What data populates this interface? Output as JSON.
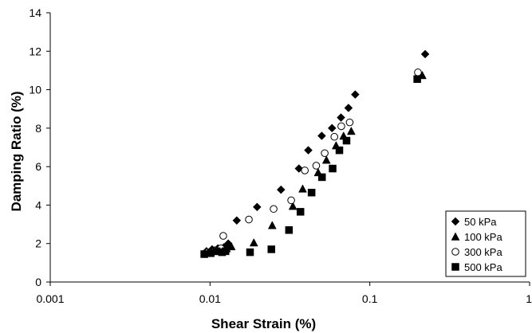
{
  "chart_data": {
    "type": "scatter",
    "title": "",
    "xlabel": "Shear Strain (%)",
    "ylabel": "Damping Ratio (%)",
    "xscale": "log",
    "xlim": [
      0.001,
      1
    ],
    "ylim": [
      0,
      14
    ],
    "xticks": [
      0.001,
      0.01,
      0.1,
      1
    ],
    "xtick_labels": [
      "0.001",
      "0.01",
      "0.1",
      "1"
    ],
    "yticks": [
      0,
      2,
      4,
      6,
      8,
      10,
      12,
      14
    ],
    "ytick_labels": [
      "0",
      "2",
      "4",
      "6",
      "8",
      "10",
      "12",
      "14"
    ],
    "grid": false,
    "legend_position": "bottom-right",
    "series": [
      {
        "name": "50 kPa",
        "marker": "diamond",
        "fill": "#000000",
        "points": [
          [
            0.0095,
            1.6
          ],
          [
            0.0103,
            1.7
          ],
          [
            0.0112,
            1.75
          ],
          [
            0.0122,
            1.8
          ],
          [
            0.013,
            2.0
          ],
          [
            0.0147,
            3.2
          ],
          [
            0.0197,
            3.9
          ],
          [
            0.0278,
            4.8
          ],
          [
            0.036,
            5.9
          ],
          [
            0.0412,
            6.85
          ],
          [
            0.05,
            7.6
          ],
          [
            0.058,
            8.0
          ],
          [
            0.066,
            8.55
          ],
          [
            0.0735,
            9.05
          ],
          [
            0.081,
            9.75
          ],
          [
            0.222,
            11.85
          ]
        ]
      },
      {
        "name": "100 kPa",
        "marker": "triangle",
        "fill": "#000000",
        "points": [
          [
            0.0098,
            1.5
          ],
          [
            0.0107,
            1.6
          ],
          [
            0.0117,
            1.65
          ],
          [
            0.0127,
            1.75
          ],
          [
            0.0136,
            1.85
          ],
          [
            0.0188,
            2.05
          ],
          [
            0.0245,
            2.95
          ],
          [
            0.033,
            3.95
          ],
          [
            0.038,
            4.85
          ],
          [
            0.0475,
            5.7
          ],
          [
            0.0535,
            6.35
          ],
          [
            0.0615,
            7.1
          ],
          [
            0.0685,
            7.6
          ],
          [
            0.0765,
            7.85
          ],
          [
            0.213,
            10.75
          ]
        ]
      },
      {
        "name": "300 kPa",
        "marker": "circle",
        "fill": "none",
        "points": [
          [
            0.0097,
            1.55
          ],
          [
            0.0108,
            1.65
          ],
          [
            0.0117,
            1.75
          ],
          [
            0.0121,
            2.4
          ],
          [
            0.0175,
            3.25
          ],
          [
            0.025,
            3.8
          ],
          [
            0.0322,
            4.25
          ],
          [
            0.0392,
            5.8
          ],
          [
            0.0462,
            6.05
          ],
          [
            0.0522,
            6.7
          ],
          [
            0.06,
            7.55
          ],
          [
            0.0663,
            8.1
          ],
          [
            0.0748,
            8.3
          ],
          [
            0.2,
            10.9
          ]
        ]
      },
      {
        "name": "500 kPa",
        "marker": "square",
        "fill": "#000000",
        "points": [
          [
            0.0092,
            1.45
          ],
          [
            0.0101,
            1.5
          ],
          [
            0.011,
            1.6
          ],
          [
            0.0119,
            1.55
          ],
          [
            0.0125,
            1.6
          ],
          [
            0.0178,
            1.55
          ],
          [
            0.0242,
            1.7
          ],
          [
            0.0312,
            2.7
          ],
          [
            0.0368,
            3.65
          ],
          [
            0.0432,
            4.65
          ],
          [
            0.0502,
            5.45
          ],
          [
            0.0585,
            5.9
          ],
          [
            0.0645,
            6.85
          ],
          [
            0.0715,
            7.35
          ],
          [
            0.198,
            10.55
          ]
        ]
      }
    ]
  }
}
